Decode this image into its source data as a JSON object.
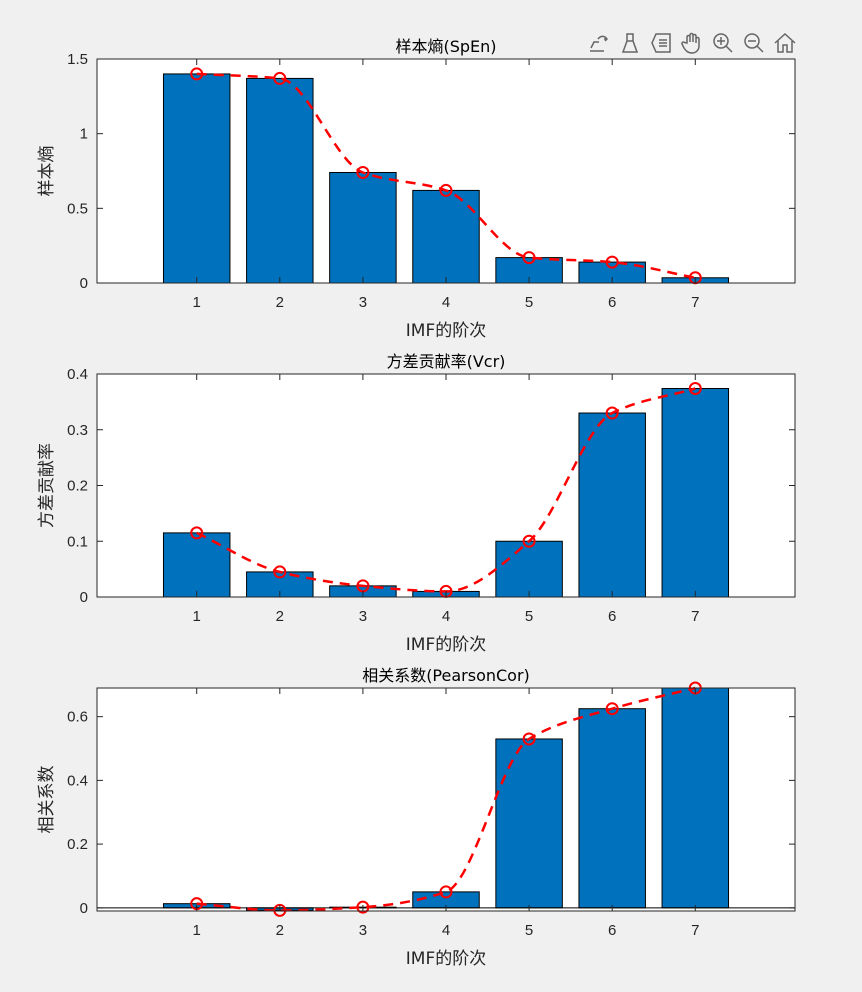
{
  "toolbar": {
    "icons": [
      "export-icon",
      "brush-icon",
      "datatip-icon",
      "pan-hand-icon",
      "zoom-in-icon",
      "zoom-out-icon",
      "home-icon"
    ]
  },
  "colors": {
    "bar": "#0072bd",
    "line": "#ff0000",
    "axes": "#262626"
  },
  "chart_data": [
    {
      "type": "bar",
      "title": "样本熵(SpEn)",
      "xlabel": "IMF的阶次",
      "ylabel": "样本熵",
      "categories": [
        "1",
        "2",
        "3",
        "4",
        "5",
        "6",
        "7"
      ],
      "values": [
        1.4,
        1.37,
        0.74,
        0.62,
        0.17,
        0.14,
        0.035
      ],
      "overlay_line": {
        "style": "red dashed, circle markers",
        "values": [
          1.4,
          1.37,
          0.74,
          0.62,
          0.17,
          0.14,
          0.035
        ]
      },
      "xlim": [
        -0.2,
        8.2
      ],
      "ylim": [
        0,
        1.5
      ],
      "yticks": [
        "0",
        "0.5",
        "1",
        "1.5"
      ],
      "ytick_values": [
        0,
        0.5,
        1,
        1.5
      ],
      "grid": false
    },
    {
      "type": "bar",
      "title": "方差贡献率(Vcr)",
      "xlabel": "IMF的阶次",
      "ylabel": "方差贡献率",
      "categories": [
        "1",
        "2",
        "3",
        "4",
        "5",
        "6",
        "7"
      ],
      "values": [
        0.115,
        0.045,
        0.02,
        0.01,
        0.1,
        0.33,
        0.374
      ],
      "overlay_line": {
        "style": "red dashed, circle markers",
        "values": [
          0.115,
          0.045,
          0.02,
          0.01,
          0.1,
          0.33,
          0.374
        ]
      },
      "xlim": [
        -0.2,
        8.2
      ],
      "ylim": [
        0,
        0.4
      ],
      "yticks": [
        "0",
        "0.1",
        "0.2",
        "0.3",
        "0.4"
      ],
      "ytick_values": [
        0,
        0.1,
        0.2,
        0.3,
        0.4
      ],
      "grid": false
    },
    {
      "type": "bar",
      "title": "相关系数(PearsonCor)",
      "xlabel": "IMF的阶次",
      "ylabel": "相关系数",
      "categories": [
        "1",
        "2",
        "3",
        "4",
        "5",
        "6",
        "7"
      ],
      "values": [
        0.013,
        -0.008,
        0.002,
        0.05,
        0.53,
        0.625,
        0.69
      ],
      "overlay_line": {
        "style": "red dashed, circle markers",
        "values": [
          0.013,
          -0.008,
          0.002,
          0.05,
          0.53,
          0.625,
          0.69
        ]
      },
      "xlim": [
        -0.2,
        8.2
      ],
      "ylim": [
        -0.01,
        0.69
      ],
      "yticks": [
        "0",
        "0.2",
        "0.4",
        "0.6"
      ],
      "ytick_values": [
        0,
        0.2,
        0.4,
        0.6
      ],
      "grid": false
    }
  ]
}
